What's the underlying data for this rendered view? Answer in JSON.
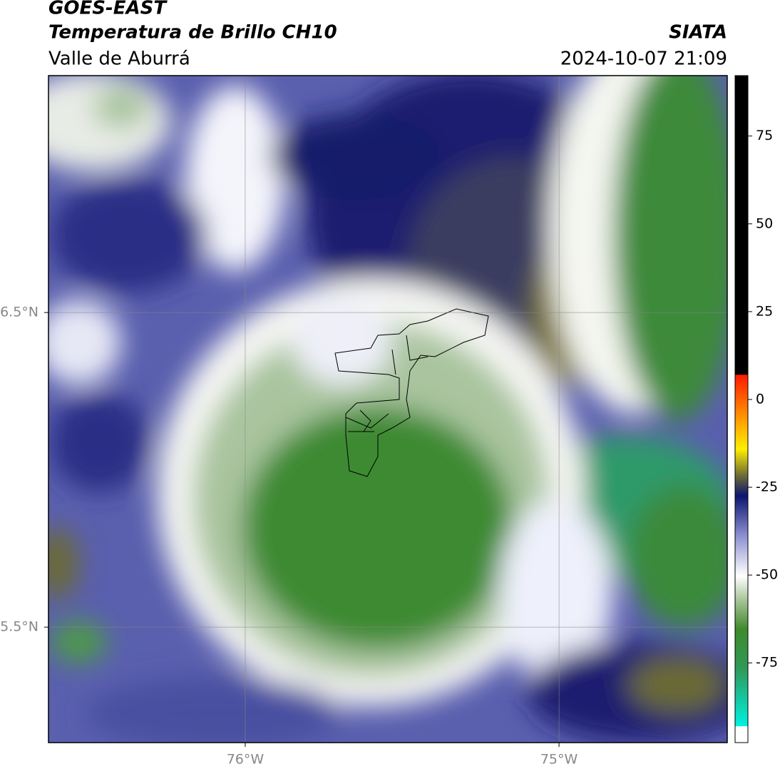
{
  "header": {
    "title": "GOES-EAST",
    "subtitle": "Temperatura de Brillo CH10",
    "region": "Valle de Aburrá",
    "source": "SIATA",
    "datetime": "2024-10-07 21:09"
  },
  "map": {
    "xlim": [
      -76.627,
      -74.464
    ],
    "ylim": [
      5.133,
      7.253
    ],
    "xticks": [
      {
        "value": -76,
        "label": "76°W"
      },
      {
        "value": -75,
        "label": "75°W"
      }
    ],
    "yticks": [
      {
        "value": 6.5,
        "label": "6.5°N"
      },
      {
        "value": 5.5,
        "label": "5.5°N"
      }
    ],
    "grid": true
  },
  "colorbar": {
    "lim": [
      -97.7,
      92.2
    ],
    "ticks": [
      75,
      50,
      25,
      0,
      -25,
      -50,
      -75
    ]
  }
}
